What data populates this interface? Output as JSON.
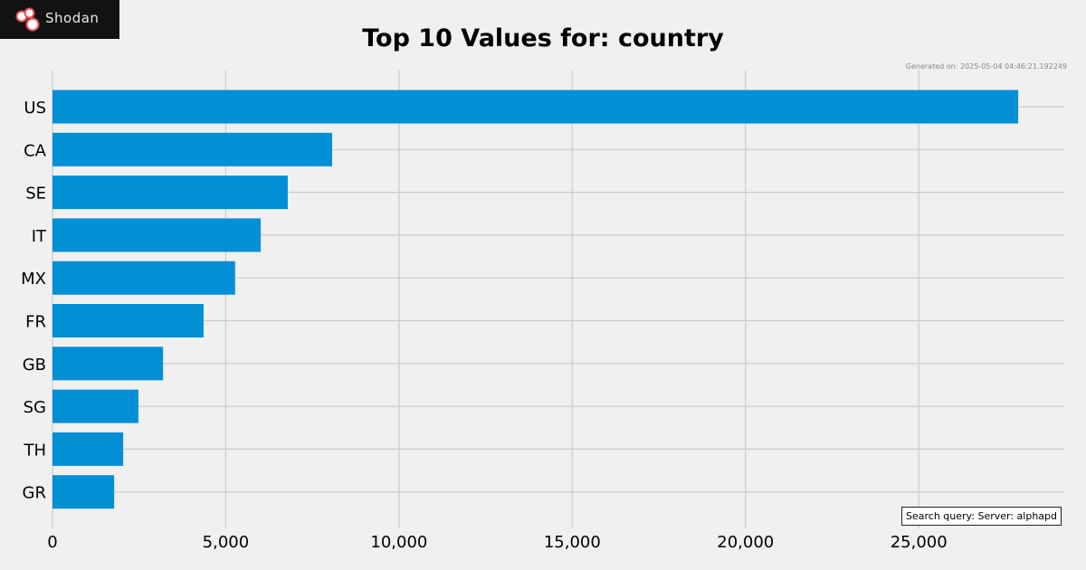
{
  "brand": {
    "logo_text": "Shodan",
    "logo_color": "#e05151"
  },
  "meta": {
    "generated": "Generated on: 2025-05-04 04:46:21.192249",
    "query": "Search query: Server: alphapd"
  },
  "colors": {
    "bar": "#038fd6",
    "grid": "#cbcbcb",
    "background": "#f0f0f0"
  },
  "chart_data": {
    "type": "bar",
    "orientation": "horizontal",
    "title": "Top 10 Values for: country",
    "categories": [
      "US",
      "CA",
      "SE",
      "IT",
      "MX",
      "FR",
      "GB",
      "SG",
      "TH",
      "GR"
    ],
    "values": [
      27870,
      8070,
      6790,
      6010,
      5270,
      4360,
      3190,
      2480,
      2040,
      1780
    ],
    "xticks": [
      0,
      5000,
      10000,
      15000,
      20000,
      25000
    ],
    "xtick_labels": [
      "0",
      "5,000",
      "10,000",
      "15,000",
      "20,000",
      "25,000"
    ],
    "xlim": [
      0,
      29200
    ],
    "grid": true,
    "xlabel": "",
    "ylabel": ""
  }
}
